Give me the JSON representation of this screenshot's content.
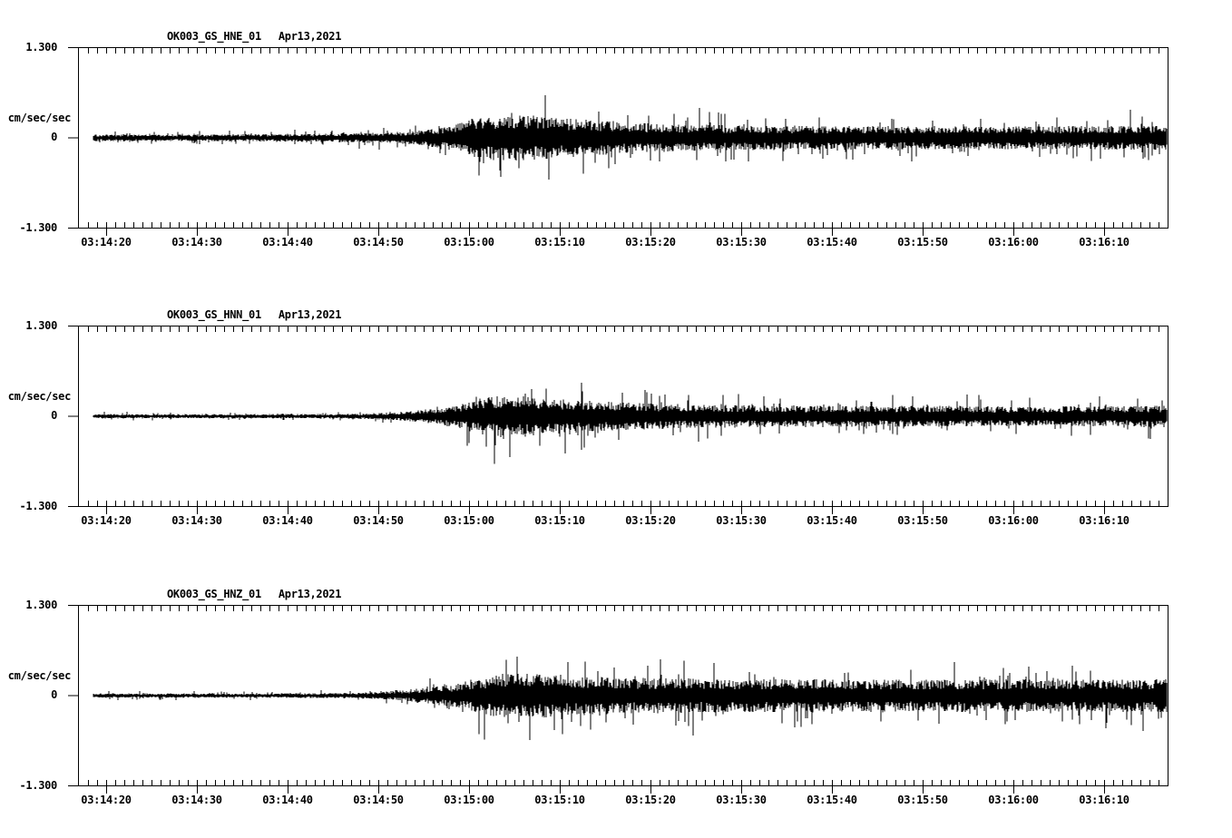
{
  "figure": {
    "background": "#ffffff",
    "trace_color": "#000000"
  },
  "panels": [
    {
      "station_label": "OK003_GS_HNE_01",
      "date_label": "Apr13,2021",
      "y_max_label": "1.300",
      "y_unit_label": "cm/sec/sec",
      "y_zero_label": "0",
      "y_min_label": "-1.300"
    },
    {
      "station_label": "OK003_GS_HNN_01",
      "date_label": "Apr13,2021",
      "y_max_label": "1.300",
      "y_unit_label": "cm/sec/sec",
      "y_zero_label": "0",
      "y_min_label": "-1.300"
    },
    {
      "station_label": "OK003_GS_HNZ_01",
      "date_label": "Apr13,2021",
      "y_max_label": "1.300",
      "y_unit_label": "cm/sec/sec",
      "y_zero_label": "0",
      "y_min_label": "-1.300"
    }
  ],
  "chart_data": {
    "type": "line",
    "kind": "seismogram-accelerogram",
    "x": {
      "start_time": "03:14:17",
      "end_time": "03:16:17",
      "major_tick_interval_s": 10,
      "minor_tick_interval_s": 1,
      "major_tick_labels": [
        "03:14:20",
        "03:14:30",
        "03:14:40",
        "03:14:50",
        "03:15:00",
        "03:15:10",
        "03:15:20",
        "03:15:30",
        "03:15:40",
        "03:15:50",
        "03:16:00",
        "03:16:10"
      ]
    },
    "y": {
      "units": "cm/sec/sec",
      "lim": [
        -1.3,
        1.3
      ],
      "tick_labels": [
        "1.300",
        "0",
        "-1.300"
      ]
    },
    "event_notes": {
      "p_onset_approx": "03:14:52",
      "s_burst_peak_approx": "03:15:04"
    },
    "series": [
      {
        "name": "OK003_GS_HNE_01",
        "date": "Apr13,2021",
        "seed": 101,
        "peak_amplitude_approx": 0.8,
        "envelope": {
          "t_s": [
            1.6,
            15,
            25,
            30,
            34,
            37,
            40,
            42,
            44,
            46,
            49,
            52,
            56,
            60,
            66,
            72,
            80,
            90,
            100,
            110,
            120
          ],
          "amp": [
            0.05,
            0.05,
            0.055,
            0.065,
            0.08,
            0.1,
            0.15,
            0.22,
            0.3,
            0.33,
            0.34,
            0.3,
            0.26,
            0.22,
            0.2,
            0.18,
            0.17,
            0.17,
            0.16,
            0.17,
            0.18
          ]
        }
      },
      {
        "name": "OK003_GS_HNN_01",
        "date": "Apr13,2021",
        "seed": 202,
        "peak_amplitude_approx": 0.65,
        "envelope": {
          "t_s": [
            1.6,
            20,
            30,
            34,
            37,
            40,
            42,
            44,
            46,
            48,
            50,
            53,
            57,
            62,
            68,
            75,
            85,
            95,
            105,
            115,
            120
          ],
          "amp": [
            0.03,
            0.03,
            0.035,
            0.05,
            0.08,
            0.13,
            0.18,
            0.25,
            0.3,
            0.31,
            0.29,
            0.25,
            0.22,
            0.19,
            0.17,
            0.16,
            0.15,
            0.15,
            0.14,
            0.15,
            0.16
          ]
        }
      },
      {
        "name": "OK003_GS_HNZ_01",
        "date": "Apr13,2021",
        "seed": 303,
        "peak_amplitude_approx": 0.75,
        "envelope": {
          "t_s": [
            1.6,
            20,
            30,
            33,
            36,
            39,
            42,
            44,
            46,
            49,
            52,
            56,
            60,
            66,
            72,
            80,
            90,
            100,
            110,
            120
          ],
          "amp": [
            0.03,
            0.03,
            0.04,
            0.05,
            0.08,
            0.12,
            0.18,
            0.26,
            0.31,
            0.33,
            0.31,
            0.28,
            0.26,
            0.25,
            0.24,
            0.24,
            0.23,
            0.24,
            0.23,
            0.24
          ]
        }
      }
    ]
  }
}
